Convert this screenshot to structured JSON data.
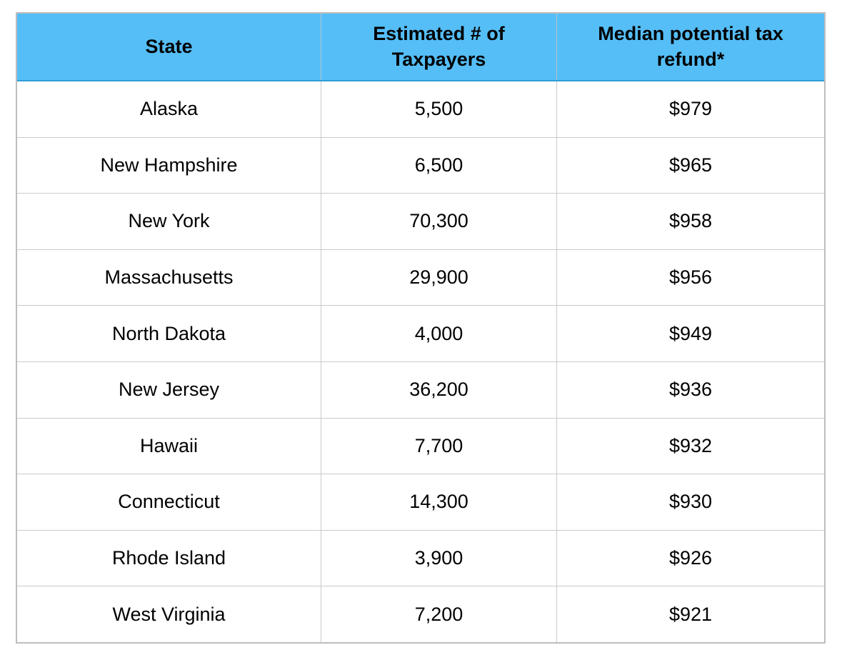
{
  "colors": {
    "header_bg": "#55bef7",
    "header_bottom_border": "#2d9ed8",
    "grid_line": "#cacaca",
    "outer_border": "#bdbdbd",
    "text": "#000000",
    "page_bg": "#ffffff"
  },
  "table": {
    "headers": {
      "state": "State",
      "taxpayers": "Estimated # of Taxpayers",
      "refund": "Median potential tax refund*"
    },
    "rows": [
      {
        "state": "Alaska",
        "taxpayers": "5,500",
        "refund": "$979"
      },
      {
        "state": "New Hampshire",
        "taxpayers": "6,500",
        "refund": "$965"
      },
      {
        "state": "New York",
        "taxpayers": "70,300",
        "refund": "$958"
      },
      {
        "state": "Massachusetts",
        "taxpayers": "29,900",
        "refund": "$956"
      },
      {
        "state": "North Dakota",
        "taxpayers": "4,000",
        "refund": "$949"
      },
      {
        "state": "New Jersey",
        "taxpayers": "36,200",
        "refund": "$936"
      },
      {
        "state": "Hawaii",
        "taxpayers": "7,700",
        "refund": "$932"
      },
      {
        "state": "Connecticut",
        "taxpayers": "14,300",
        "refund": "$930"
      },
      {
        "state": "Rhode Island",
        "taxpayers": "3,900",
        "refund": "$926"
      },
      {
        "state": "West Virginia",
        "taxpayers": "7,200",
        "refund": "$921"
      }
    ]
  },
  "chart_data": {
    "type": "table",
    "title": "",
    "columns": [
      "State",
      "Estimated # of Taxpayers",
      "Median potential tax refund*"
    ],
    "rows": [
      [
        "Alaska",
        "5,500",
        "$979"
      ],
      [
        "New Hampshire",
        "6,500",
        "$965"
      ],
      [
        "New York",
        "70,300",
        "$958"
      ],
      [
        "Massachusetts",
        "29,900",
        "$956"
      ],
      [
        "North Dakota",
        "4,000",
        "$949"
      ],
      [
        "New Jersey",
        "36,200",
        "$936"
      ],
      [
        "Hawaii",
        "7,700",
        "$932"
      ],
      [
        "Connecticut",
        "14,300",
        "$930"
      ],
      [
        "Rhode Island",
        "3,900",
        "$926"
      ],
      [
        "West Virginia",
        "7,200",
        "$921"
      ]
    ]
  }
}
